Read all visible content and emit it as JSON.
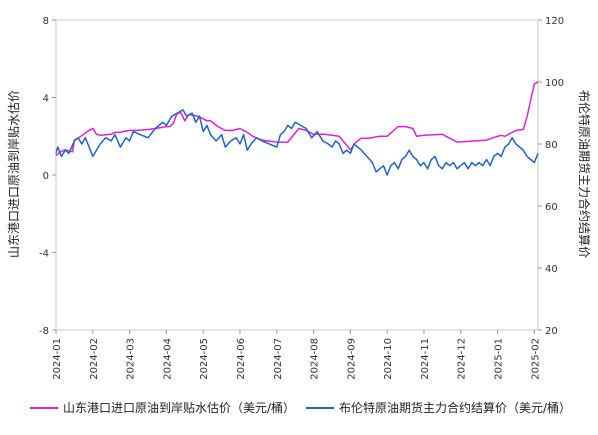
{
  "chart_data": {
    "type": "line",
    "title": "",
    "ylabel_left": "山东港口进口原油到岸贴水估价",
    "ylabel_right": "布伦特原油期货主力合约结算价",
    "y_left_range": [
      -8,
      8
    ],
    "y_left_ticks": [
      "8",
      "4",
      "0",
      "-4",
      "-8"
    ],
    "y_right_range": [
      20,
      120
    ],
    "y_right_ticks": [
      "120",
      "100",
      "80",
      "60",
      "40",
      "20"
    ],
    "x_range": [
      0,
      13.1
    ],
    "x_ticks": [
      "2024-01",
      "2024-02",
      "2024-03",
      "2024-04",
      "2024-05",
      "2024-06",
      "2024-07",
      "2024-08",
      "2024-09",
      "2024-10",
      "2024-11",
      "2024-12",
      "2025-01",
      "2025-02"
    ],
    "grid": false,
    "legend_position": "bottom",
    "series": [
      {
        "name": "山东港口进口原油到岸贴水估价（美元/桶）",
        "axis": "left",
        "color": "#e020d8",
        "x": [
          0.0,
          0.12,
          0.25,
          0.45,
          0.5,
          0.6,
          0.9,
          1.0,
          1.1,
          1.2,
          1.5,
          1.6,
          1.75,
          1.85,
          2.0,
          2.2,
          2.5,
          2.7,
          3.0,
          3.1,
          3.2,
          3.25,
          3.3,
          3.4,
          3.5,
          3.6,
          3.7,
          3.9,
          4.0,
          4.1,
          4.2,
          4.4,
          4.6,
          4.8,
          5.0,
          5.2,
          5.35,
          5.6,
          6.0,
          6.3,
          6.6,
          6.8,
          7.0,
          7.3,
          7.7,
          8.0,
          8.15,
          8.3,
          8.5,
          8.8,
          9.0,
          9.3,
          9.5,
          9.7,
          9.8,
          10.0,
          10.5,
          10.9,
          11.3,
          11.7,
          12.0,
          12.1,
          12.2,
          12.5,
          12.7,
          12.8,
          13.0,
          13.1
        ],
        "y": [
          1.0,
          1.2,
          1.3,
          1.2,
          1.8,
          1.9,
          2.3,
          2.4,
          2.1,
          2.05,
          2.1,
          2.2,
          2.2,
          2.25,
          2.3,
          2.3,
          2.35,
          2.4,
          2.5,
          2.5,
          2.7,
          3.0,
          3.2,
          3.2,
          2.8,
          3.1,
          3.1,
          3.0,
          2.9,
          2.8,
          2.8,
          2.5,
          2.3,
          2.3,
          2.4,
          2.2,
          2.0,
          1.8,
          1.7,
          1.7,
          2.4,
          2.3,
          2.1,
          2.1,
          2.0,
          1.3,
          1.7,
          1.9,
          1.9,
          2.0,
          2.0,
          2.5,
          2.5,
          2.4,
          2.0,
          2.05,
          2.1,
          1.7,
          1.75,
          1.8,
          2.0,
          2.05,
          2.0,
          2.3,
          2.35,
          3.0,
          4.7,
          4.8
        ]
      },
      {
        "name": "布伦特原油期货主力合约结算价（美元/桶）",
        "axis": "right",
        "color": "#1f65c4",
        "x": [
          0.0,
          0.05,
          0.15,
          0.25,
          0.35,
          0.5,
          0.6,
          0.7,
          0.8,
          0.9,
          1.0,
          1.1,
          1.2,
          1.35,
          1.5,
          1.6,
          1.75,
          1.9,
          2.0,
          2.1,
          2.3,
          2.5,
          2.7,
          2.9,
          3.0,
          3.15,
          3.3,
          3.45,
          3.55,
          3.7,
          3.8,
          3.9,
          4.0,
          4.1,
          4.2,
          4.35,
          4.5,
          4.6,
          4.75,
          4.9,
          5.0,
          5.1,
          5.2,
          5.3,
          5.45,
          5.6,
          5.8,
          6.0,
          6.1,
          6.2,
          6.3,
          6.4,
          6.5,
          6.65,
          6.8,
          6.95,
          7.1,
          7.25,
          7.4,
          7.5,
          7.6,
          7.7,
          7.8,
          7.9,
          8.0,
          8.1,
          8.2,
          8.3,
          8.45,
          8.6,
          8.7,
          8.8,
          8.9,
          9.0,
          9.1,
          9.2,
          9.3,
          9.4,
          9.5,
          9.6,
          9.7,
          9.8,
          9.9,
          10.0,
          10.1,
          10.2,
          10.3,
          10.4,
          10.5,
          10.6,
          10.7,
          10.8,
          10.9,
          11.0,
          11.1,
          11.2,
          11.3,
          11.4,
          11.5,
          11.6,
          11.7,
          11.8,
          11.9,
          12.0,
          12.1,
          12.2,
          12.3,
          12.4,
          12.5,
          12.6,
          12.7,
          12.8,
          12.9,
          13.0,
          13.1
        ],
        "y": [
          77,
          79,
          76,
          78,
          77,
          81,
          82,
          80,
          82,
          79,
          76,
          78,
          80,
          82,
          81,
          83,
          79,
          82,
          81,
          84,
          83,
          82,
          85,
          87,
          86,
          89,
          90,
          91,
          89,
          90,
          87,
          89,
          84,
          86,
          83,
          81,
          83,
          79,
          81,
          82,
          80,
          83,
          78,
          80,
          82,
          81,
          80,
          79,
          83,
          84,
          86,
          85,
          87,
          86,
          85,
          82,
          84,
          81,
          80,
          79,
          81,
          80,
          77,
          78,
          77,
          80,
          79,
          78,
          76,
          74,
          71,
          72,
          73,
          70,
          73,
          74,
          72,
          75,
          76,
          78,
          76,
          75,
          73,
          74,
          72,
          75,
          76,
          73,
          72,
          74,
          73,
          74,
          72,
          73,
          74,
          72,
          74,
          73,
          74,
          73,
          75,
          73,
          76,
          77,
          76,
          79,
          80,
          82,
          80,
          79,
          78,
          76,
          75,
          74,
          77
        ]
      }
    ]
  }
}
